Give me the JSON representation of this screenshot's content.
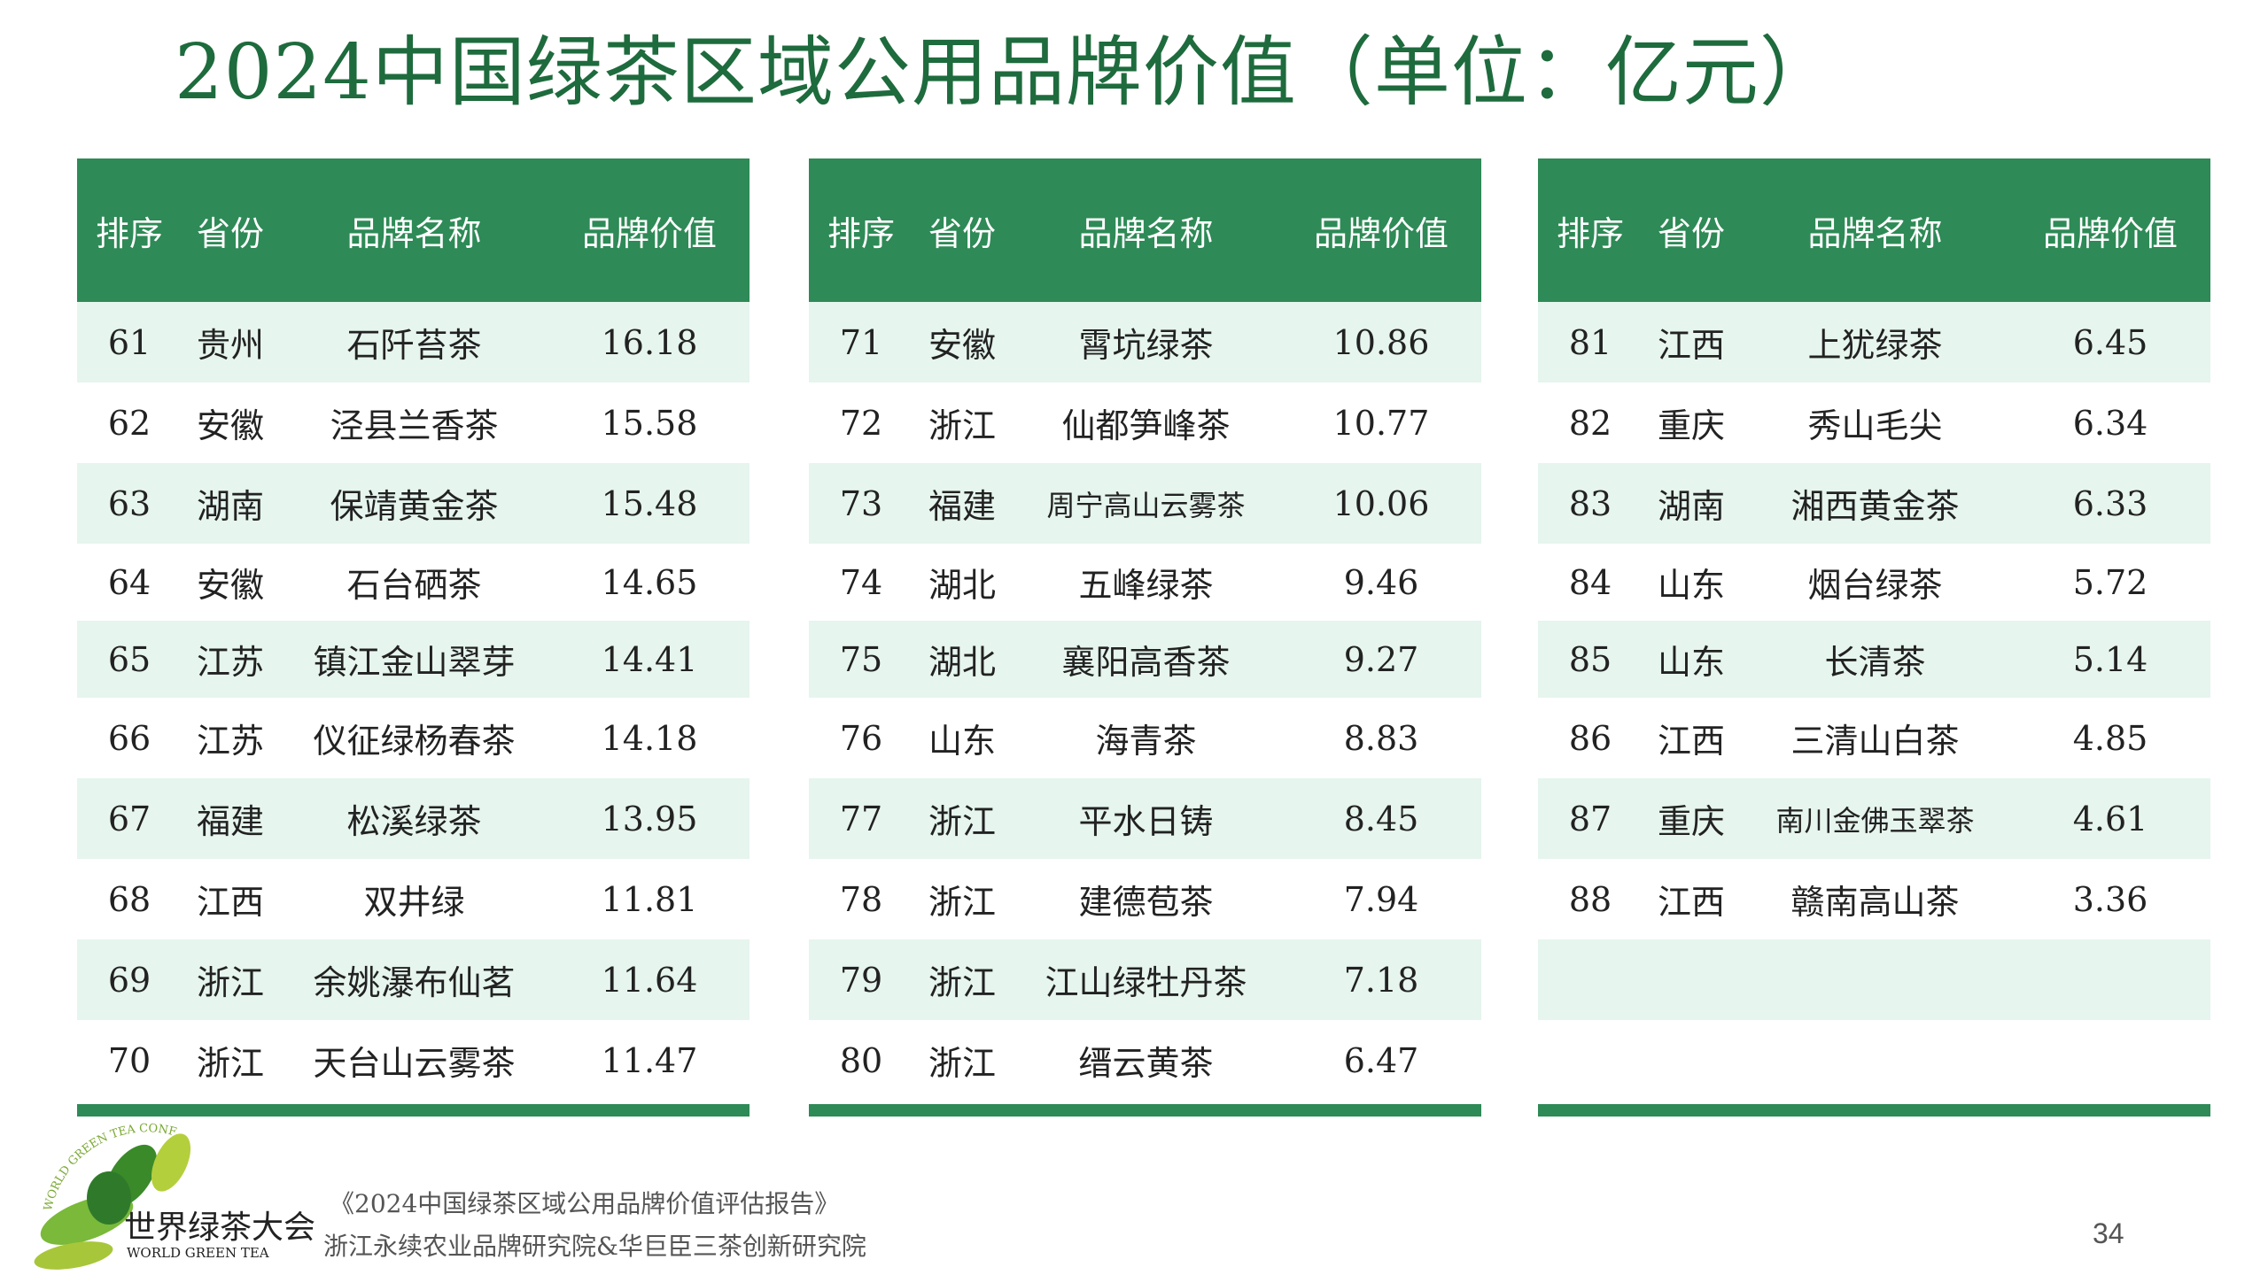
{
  "title": "2024中国绿茶区域公用品牌价值（单位：亿元）",
  "headers": [
    "排序",
    "省份",
    "品牌名称",
    "品牌价值"
  ],
  "tables": [
    {
      "rows": [
        [
          "61",
          "贵州",
          "石阡苔茶",
          "16.18"
        ],
        [
          "62",
          "安徽",
          "泾县兰香茶",
          "15.58"
        ],
        [
          "63",
          "湖南",
          "保靖黄金茶",
          "15.48"
        ],
        [
          "64",
          "安徽",
          "石台硒茶",
          "14.65"
        ],
        [
          "65",
          "江苏",
          "镇江金山翠芽",
          "14.41"
        ],
        [
          "66",
          "江苏",
          "仪征绿杨春茶",
          "14.18"
        ],
        [
          "67",
          "福建",
          "松溪绿茶",
          "13.95"
        ],
        [
          "68",
          "江西",
          "双井绿",
          "11.81"
        ],
        [
          "69",
          "浙江",
          "余姚瀑布仙茗",
          "11.64"
        ],
        [
          "70",
          "浙江",
          "天台山云雾茶",
          "11.47"
        ]
      ]
    },
    {
      "rows": [
        [
          "71",
          "安徽",
          "霄坑绿茶",
          "10.86"
        ],
        [
          "72",
          "浙江",
          "仙都笋峰茶",
          "10.77"
        ],
        [
          "73",
          "福建",
          "周宁高山云雾茶",
          "10.06"
        ],
        [
          "74",
          "湖北",
          "五峰绿茶",
          "9.46"
        ],
        [
          "75",
          "湖北",
          "襄阳高香茶",
          "9.27"
        ],
        [
          "76",
          "山东",
          "海青茶",
          "8.83"
        ],
        [
          "77",
          "浙江",
          "平水日铸",
          "8.45"
        ],
        [
          "78",
          "浙江",
          "建德苞茶",
          "7.94"
        ],
        [
          "79",
          "浙江",
          "江山绿牡丹茶",
          "7.18"
        ],
        [
          "80",
          "浙江",
          "缙云黄茶",
          "6.47"
        ]
      ]
    },
    {
      "rows": [
        [
          "81",
          "江西",
          "上犹绿茶",
          "6.45"
        ],
        [
          "82",
          "重庆",
          "秀山毛尖",
          "6.34"
        ],
        [
          "83",
          "湖南",
          "湘西黄金茶",
          "6.33"
        ],
        [
          "84",
          "山东",
          "烟台绿茶",
          "5.72"
        ],
        [
          "85",
          "山东",
          "长清茶",
          "5.14"
        ],
        [
          "86",
          "江西",
          "三清山白茶",
          "4.85"
        ],
        [
          "87",
          "重庆",
          "南川金佛玉翠茶",
          "4.61"
        ],
        [
          "88",
          "江西",
          "赣南高山茶",
          "3.36"
        ],
        [
          "",
          "",
          "",
          ""
        ],
        [
          "",
          "",
          "",
          ""
        ]
      ]
    }
  ],
  "footer": {
    "citation": "《2024中国绿茶区域公用品牌价值评估报告》",
    "institutes": "浙江永续农业品牌研究院&华巨臣三茶创新研究院",
    "page_number": "34"
  },
  "logo": {
    "cn_name": "世界绿茶大会",
    "en_name": "WORLD GREEN TEA",
    "arc_text": "WORLD GREEN TEA CONFERENCE"
  },
  "colors": {
    "header_green": "#2e8a56",
    "alt_row": "#e6f5ee",
    "title_green": "#1e6b3d"
  }
}
